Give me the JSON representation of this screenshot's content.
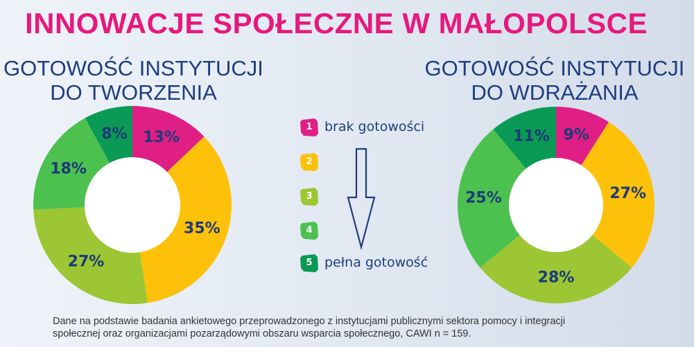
{
  "title": "INNOWACJE SPOŁECZNE W MAŁOPOLSCE",
  "legend": {
    "items": [
      {
        "num": "1",
        "label": "brak gotowości",
        "color": "#e01f86"
      },
      {
        "num": "2",
        "label": "",
        "color": "#fdc10a"
      },
      {
        "num": "3",
        "label": "",
        "color": "#9cc634"
      },
      {
        "num": "4",
        "label": "",
        "color": "#4cc14f"
      },
      {
        "num": "5",
        "label": "pełna gotowość",
        "color": "#0b9a55"
      }
    ]
  },
  "footnote": {
    "line1": "Dane na podstawie badania ankietowego przeprowadzonego z instytucjami publicznymi sektora pomocy i integracji",
    "line2": "społecznej oraz organizacjami pozarządowymi obszaru wsparcia społecznego, CAWI n = 159."
  },
  "chart_data": [
    {
      "type": "pie",
      "donut": true,
      "title_lines": [
        "GOTOWOŚĆ INSTYTUCJI",
        "DO TWORZENIA"
      ],
      "categories": [
        "1",
        "2",
        "3",
        "4",
        "5"
      ],
      "values": [
        13,
        35,
        27,
        18,
        8
      ],
      "labels": [
        "13%",
        "35%",
        "27%",
        "18%",
        "8%"
      ],
      "colors": [
        "#e01f86",
        "#fdc10a",
        "#9cc634",
        "#4cc14f",
        "#0b9a55"
      ]
    },
    {
      "type": "pie",
      "donut": true,
      "title_lines": [
        "GOTOWOŚĆ INSTYTUCJI",
        "DO WDRAŻANIA"
      ],
      "categories": [
        "1",
        "2",
        "3",
        "4",
        "5"
      ],
      "values": [
        9,
        27,
        28,
        25,
        11
      ],
      "labels": [
        "9%",
        "27%",
        "28%",
        "25%",
        "11%"
      ],
      "colors": [
        "#e01f86",
        "#fdc10a",
        "#9cc634",
        "#4cc14f",
        "#0b9a55"
      ]
    }
  ]
}
